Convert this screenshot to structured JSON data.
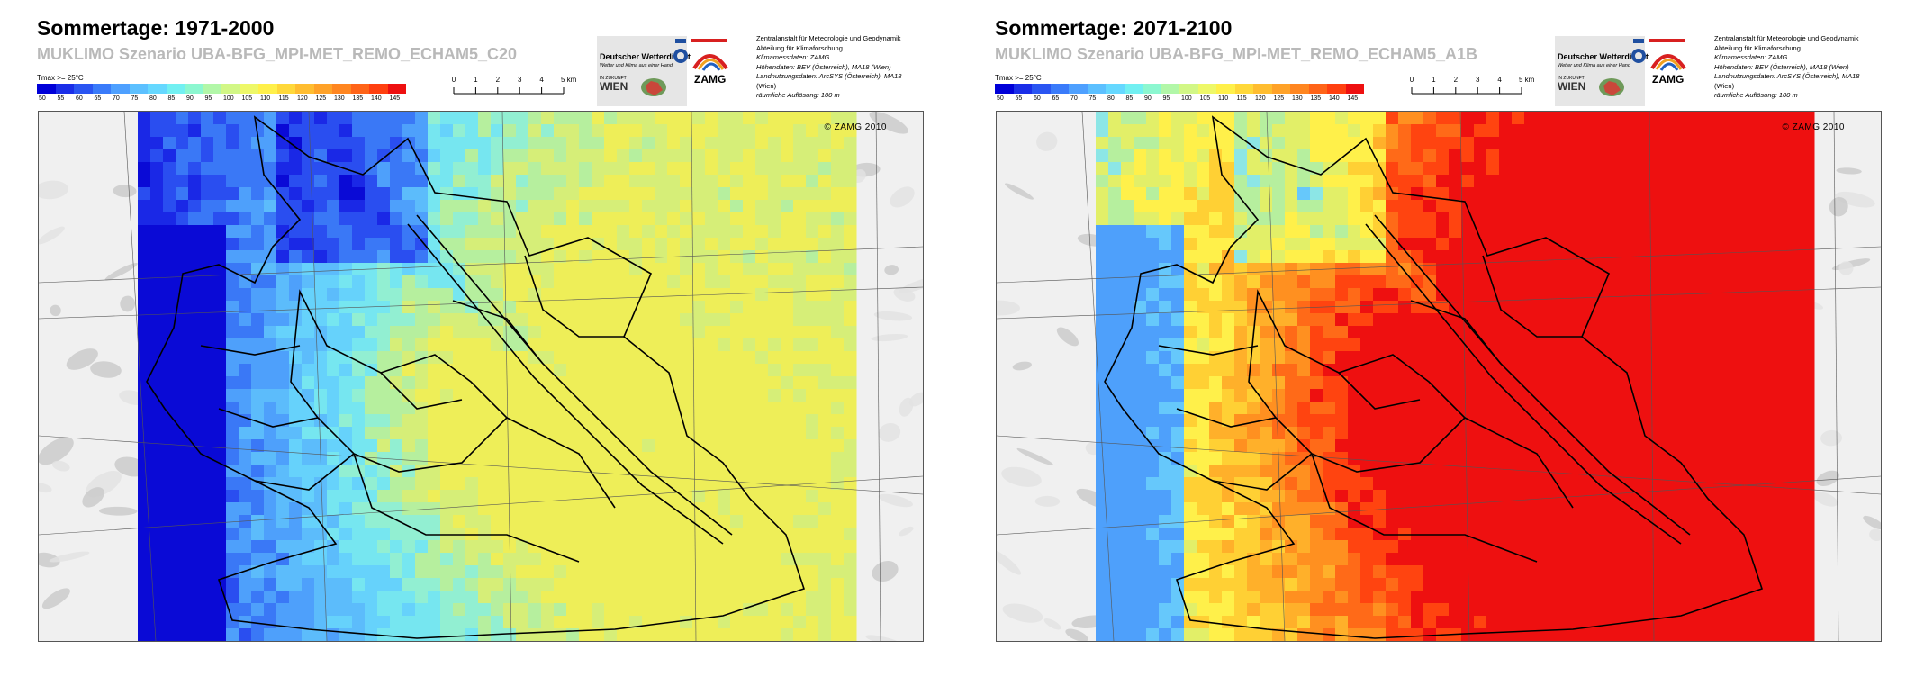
{
  "panels": [
    {
      "title": "Sommertage: 1971-2000",
      "subtitle": "MUKLIMO Szenario UBA-BFG_MPI-MET_REMO_ECHAM5_C20",
      "scheme": "cool"
    },
    {
      "title": "Sommertage: 2071-2100",
      "subtitle": "MUKLIMO Szenario UBA-BFG_MPI-MET_REMO_ECHAM5_A1B",
      "scheme": "warm"
    }
  ],
  "legend": {
    "title": "Tmax >= 25°C",
    "values": [
      "50",
      "55",
      "60",
      "65",
      "70",
      "75",
      "80",
      "85",
      "90",
      "95",
      "100",
      "105",
      "110",
      "115",
      "120",
      "125",
      "130",
      "135",
      "140",
      "145"
    ],
    "colors": [
      "#0000d8",
      "#1a2ee8",
      "#2a55f2",
      "#3a7bfa",
      "#4ea0ff",
      "#5cc0ff",
      "#66d8ff",
      "#72f0f2",
      "#8cf7d0",
      "#b2f7a8",
      "#d2f786",
      "#eef868",
      "#fff04a",
      "#ffd83a",
      "#ffbd30",
      "#ffa228",
      "#ff8620",
      "#ff6418",
      "#ff4010",
      "#ee1010"
    ]
  },
  "scalebar": {
    "labels": [
      "0",
      "1",
      "2",
      "3",
      "4",
      "5 km"
    ]
  },
  "logos": {
    "dwd_name": "Deutscher Wetterdienst",
    "dwd_tagline": "Wetter und Klima aus einer Hand",
    "wien_small": "IN ZUKUNFT",
    "wien": "WIEN",
    "zamg": "ZAMG"
  },
  "info": {
    "line1": "Zentralanstalt für Meteorologie und Geodynamik",
    "line2": "Abteilung für Klimaforschung",
    "line3": "Klimamessdaten: ZAMG",
    "line4": "Höhendaten: BEV (Österreich), MA18 (Wien)",
    "line5": "Landnutzungsdaten: ArcSYS (Österreich), MA18",
    "line6": "(Wien)",
    "line7": "räumliche Auflösung: 100 m"
  },
  "copyright": "© ZAMG 2010"
}
